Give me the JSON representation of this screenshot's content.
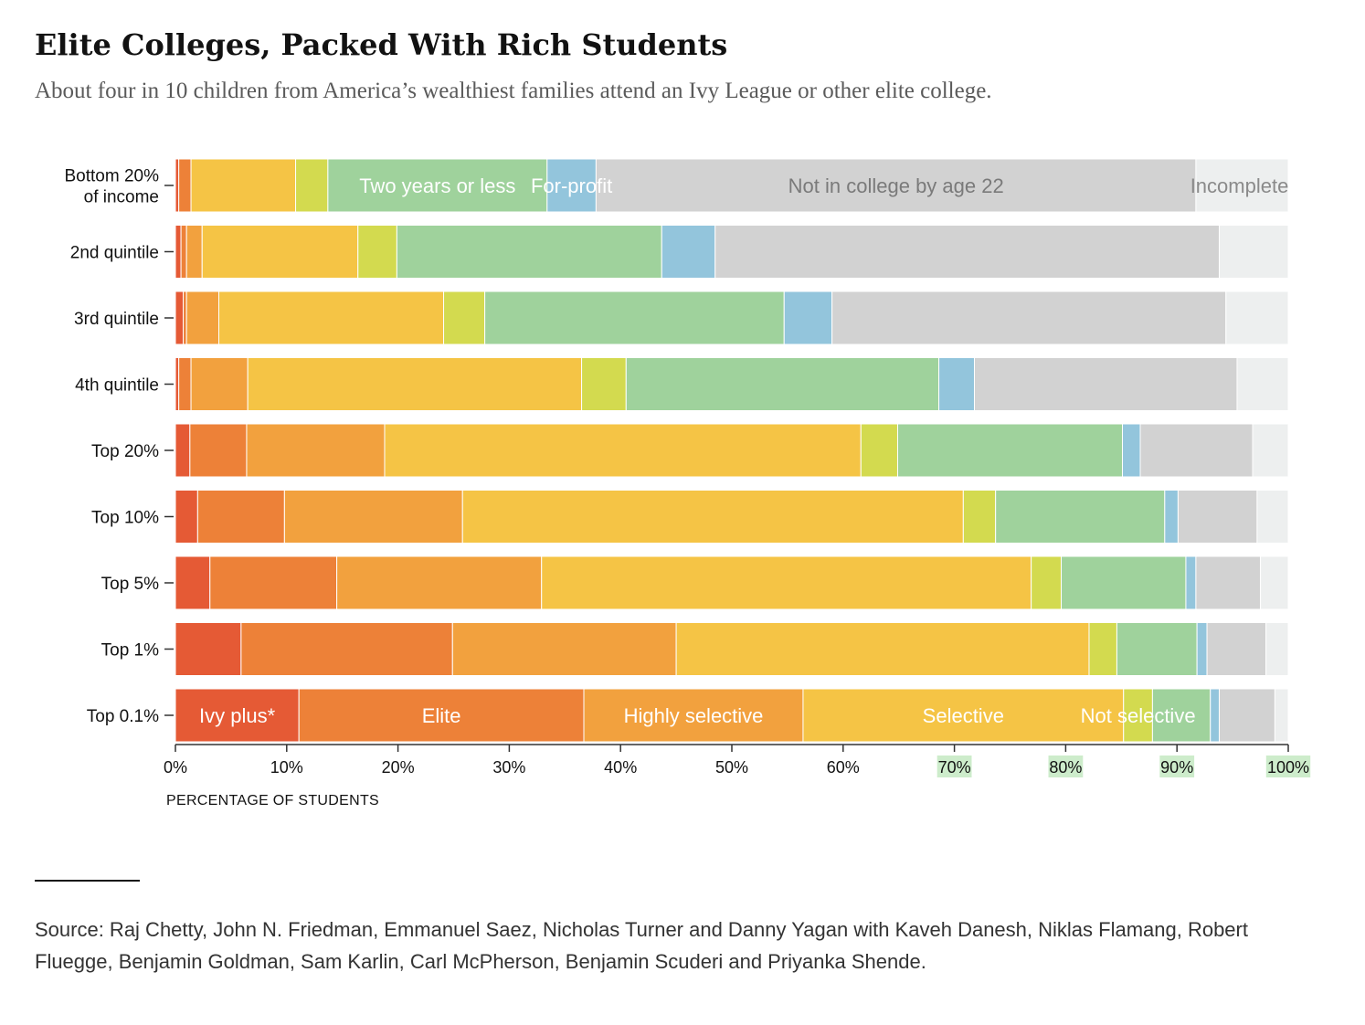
{
  "header": {
    "title": "Elite Colleges, Packed With Rich Students",
    "subtitle": "About four in 10 children from America’s wealthiest families attend an Ivy League or other elite college."
  },
  "footer": {
    "source": "Source: Raj Chetty, John N. Friedman, Emmanuel Saez, Nicholas Turner and Danny Yagan with Kaveh Danesh, Niklas Flamang, Robert Fluegge, Benjamin Goldman, Sam Karlin, Carl McPherson, Benjamin Scuderi and Priyanka Shende."
  },
  "chart_data": {
    "type": "bar",
    "orientation": "horizontal",
    "stacked": true,
    "title": "Elite Colleges, Packed With Rich Students",
    "xlabel": "PERCENTAGE OF STUDENTS",
    "ylabel": "",
    "xlim": [
      0,
      100
    ],
    "x_ticks": [
      "0%",
      "10%",
      "20%",
      "30%",
      "40%",
      "50%",
      "60%",
      "70%",
      "80%",
      "90%",
      "100%"
    ],
    "highlighted_ticks": [
      "70%",
      "80%",
      "90%",
      "100%"
    ],
    "categories": [
      [
        "Bottom 20%",
        "of income"
      ],
      [
        "2nd quintile"
      ],
      [
        "3rd quintile"
      ],
      [
        "4th quintile"
      ],
      [
        "Top 20%"
      ],
      [
        "Top 10%"
      ],
      [
        "Top 5%"
      ],
      [
        "Top 1%"
      ],
      [
        "Top 0.1%"
      ]
    ],
    "series": [
      {
        "name": "Ivy plus*",
        "color": "#e55a35",
        "values": [
          0.3,
          0.5,
          0.7,
          0.3,
          1.3,
          2.0,
          3.1,
          5.9,
          11.1
        ]
      },
      {
        "name": "Elite",
        "color": "#ed8138",
        "values": [
          1.1,
          0.5,
          0.3,
          1.1,
          5.1,
          7.8,
          11.4,
          19.0,
          25.6
        ]
      },
      {
        "name": "Highly selective",
        "color": "#f2a13e",
        "values": [
          0.0,
          1.4,
          2.9,
          5.1,
          12.4,
          16.0,
          18.4,
          20.1,
          19.7
        ]
      },
      {
        "name": "Selective",
        "color": "#f5c445",
        "values": [
          9.4,
          14.0,
          20.2,
          30.0,
          42.8,
          45.0,
          44.0,
          37.1,
          28.8
        ]
      },
      {
        "name": "Not selective",
        "color": "#d3da4f",
        "values": [
          2.9,
          3.5,
          3.7,
          4.0,
          3.3,
          2.9,
          2.7,
          2.5,
          2.6
        ]
      },
      {
        "name": "Two years or less",
        "color": "#9fd29c",
        "values": [
          19.7,
          23.8,
          26.9,
          28.1,
          20.2,
          15.2,
          11.2,
          7.2,
          5.2
        ]
      },
      {
        "name": "For-profit",
        "color": "#93c5dc",
        "values": [
          4.4,
          4.8,
          4.3,
          3.2,
          1.6,
          1.2,
          0.9,
          0.9,
          0.8
        ]
      },
      {
        "name": "Not in college by age 22",
        "color": "#d2d2d2",
        "values": [
          53.9,
          45.3,
          35.4,
          23.6,
          10.1,
          7.1,
          5.8,
          5.3,
          5.0
        ]
      },
      {
        "name": "Incomplete",
        "color": "#edefef",
        "values": [
          8.3,
          6.2,
          5.6,
          4.6,
          3.2,
          2.8,
          2.5,
          2.0,
          1.2
        ]
      }
    ],
    "inline_labels": [
      {
        "series": "Two years or less",
        "row": 0,
        "text": "Two years or less",
        "color": "#ffffff"
      },
      {
        "series": "For-profit",
        "row": 0,
        "text": "For-profit",
        "color": "#ffffff"
      },
      {
        "series": "Not in college by age 22",
        "row": 0,
        "text": "Not in college by age 22",
        "color": "#7a7a7a"
      },
      {
        "series": "Incomplete",
        "row": 0,
        "text": "Incomplete",
        "color": "#8a8a8a"
      },
      {
        "series": "Ivy plus*",
        "row": 8,
        "text": "Ivy plus*",
        "color": "#ffffff"
      },
      {
        "series": "Elite",
        "row": 8,
        "text": "Elite",
        "color": "#ffffff"
      },
      {
        "series": "Highly selective",
        "row": 8,
        "text": "Highly selective",
        "color": "#ffffff"
      },
      {
        "series": "Selective",
        "row": 8,
        "text": "Selective",
        "color": "#ffffff"
      },
      {
        "series": "Not selective",
        "row": 8,
        "text": "Not selective",
        "color": "#ffffff"
      }
    ]
  }
}
